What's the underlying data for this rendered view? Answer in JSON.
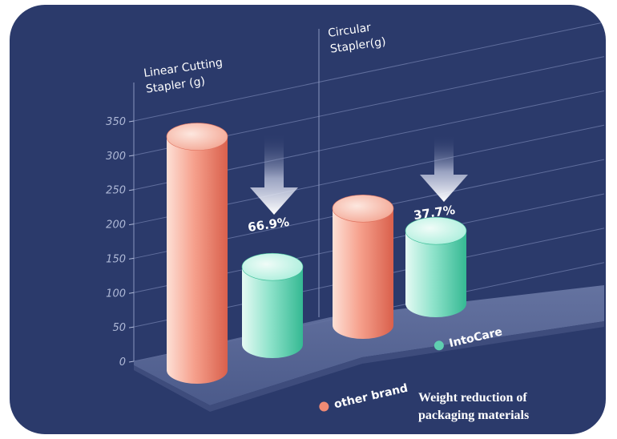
{
  "chart_data": {
    "type": "bar",
    "categories": [
      "Linear Cutting Stapler (g)",
      "Circular Stapler(g)"
    ],
    "axis_titles": [
      [
        "Linear Cutting",
        "Stapler (g)"
      ],
      [
        "Circular",
        "Stapler(g)"
      ]
    ],
    "series": [
      {
        "name": "other brand",
        "values": [
          340,
          170
        ]
      },
      {
        "name": "IntoCare",
        "values": [
          113,
          106
        ]
      }
    ],
    "reductions": [
      "66.9%",
      "37.7%"
    ],
    "yticks": [
      "0",
      "50",
      "100",
      "150",
      "200",
      "250",
      "300",
      "350"
    ],
    "ylim": [
      0,
      350
    ],
    "legend_position": "bottom-right",
    "caption": [
      "Weight reduction of",
      "packaging materials"
    ],
    "colors": {
      "background": "#2b3a6b",
      "other_brand": "#f08a74",
      "intocare": "#5fcfb0",
      "platform": "#5a6a9a"
    }
  }
}
